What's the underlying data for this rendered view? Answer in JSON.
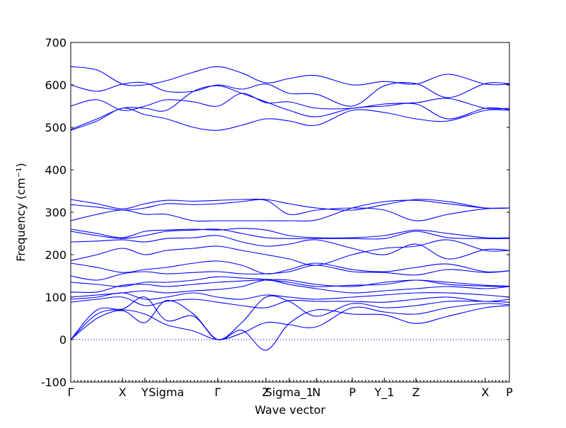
{
  "chart_data": {
    "type": "line",
    "title": "",
    "xlabel": "Wave vector",
    "ylabel": "Frequency (cm⁻¹)",
    "ylim": [
      -100,
      700
    ],
    "yticks": [
      -100,
      0,
      100,
      200,
      300,
      400,
      500,
      600,
      700
    ],
    "xlim": [
      0,
      1
    ],
    "grid": false,
    "zero_line": {
      "y": 0,
      "style": "dotted"
    },
    "line_color": "#0000ff",
    "high_symmetry_points": [
      {
        "label": "Γ",
        "x": 0.0
      },
      {
        "label": "X",
        "x": 0.118
      },
      {
        "label": "Y",
        "x": 0.169
      },
      {
        "label": "Sigma",
        "x": 0.218
      },
      {
        "label": "Γ",
        "x": 0.335
      },
      {
        "label": "Z",
        "x": 0.445
      },
      {
        "label": "Sigma_1",
        "x": 0.498
      },
      {
        "label": "N",
        "x": 0.56
      },
      {
        "label": "P",
        "x": 0.642
      },
      {
        "label": "Y_1",
        "x": 0.715
      },
      {
        "label": "Z",
        "x": 0.787
      },
      {
        "label": "X",
        "x": 0.945
      },
      {
        "label": "P",
        "x": 1.0
      }
    ],
    "series": [
      {
        "x": [
          0,
          0.06,
          0.118,
          0.169,
          0.218,
          0.28,
          0.335,
          0.39,
          0.445,
          0.498,
          0.56,
          0.642,
          0.715,
          0.787,
          0.86,
          0.945,
          1.0
        ],
        "y": [
          0,
          50,
          68,
          40,
          92,
          60,
          0,
          22,
          -25,
          38,
          70,
          60,
          58,
          38,
          55,
          75,
          80
        ]
      },
      {
        "x": [
          0,
          0.06,
          0.118,
          0.169,
          0.218,
          0.28,
          0.335,
          0.39,
          0.445,
          0.498,
          0.56,
          0.642,
          0.715,
          0.787,
          0.86,
          0.945,
          1.0
        ],
        "y": [
          0,
          60,
          70,
          60,
          35,
          20,
          0,
          15,
          40,
          35,
          30,
          75,
          65,
          60,
          75,
          85,
          82
        ]
      },
      {
        "x": [
          0,
          0.06,
          0.118,
          0.169,
          0.218,
          0.28,
          0.335,
          0.39,
          0.445,
          0.498,
          0.56,
          0.642,
          0.715,
          0.787,
          0.86,
          0.945,
          1.0
        ],
        "y": [
          0,
          70,
          72,
          100,
          45,
          55,
          0,
          40,
          100,
          90,
          55,
          85,
          75,
          80,
          90,
          90,
          88
        ]
      },
      {
        "x": [
          0,
          0.06,
          0.118,
          0.169,
          0.218,
          0.28,
          0.335,
          0.39,
          0.445,
          0.498,
          0.56,
          0.642,
          0.715,
          0.787,
          0.86,
          0.945,
          1.0
        ],
        "y": [
          88,
          95,
          100,
          80,
          90,
          95,
          88,
          80,
          75,
          92,
          90,
          90,
          88,
          95,
          100,
          90,
          95
        ]
      },
      {
        "x": [
          0,
          0.06,
          0.118,
          0.169,
          0.218,
          0.28,
          0.335,
          0.39,
          0.445,
          0.498,
          0.56,
          0.642,
          0.715,
          0.787,
          0.86,
          0.945,
          1.0
        ],
        "y": [
          95,
          100,
          110,
          95,
          100,
          110,
          100,
          95,
          105,
          100,
          95,
          100,
          105,
          110,
          110,
          105,
          100
        ]
      },
      {
        "x": [
          0,
          0.06,
          0.118,
          0.169,
          0.218,
          0.28,
          0.335,
          0.39,
          0.445,
          0.498,
          0.56,
          0.642,
          0.715,
          0.787,
          0.86,
          0.945,
          1.0
        ],
        "y": [
          100,
          105,
          110,
          115,
          110,
          115,
          118,
          125,
          140,
          130,
          120,
          110,
          115,
          120,
          125,
          120,
          125
        ]
      },
      {
        "x": [
          0,
          0.06,
          0.118,
          0.169,
          0.218,
          0.28,
          0.335,
          0.39,
          0.445,
          0.498,
          0.56,
          0.642,
          0.715,
          0.787,
          0.86,
          0.945,
          1.0
        ],
        "y": [
          112,
          112,
          128,
          130,
          125,
          130,
          135,
          138,
          140,
          135,
          125,
          128,
          130,
          140,
          130,
          126,
          125
        ]
      },
      {
        "x": [
          0,
          0.06,
          0.118,
          0.169,
          0.218,
          0.28,
          0.335,
          0.39,
          0.445,
          0.498,
          0.56,
          0.642,
          0.715,
          0.787,
          0.86,
          0.945,
          1.0
        ],
        "y": [
          135,
          130,
          125,
          135,
          135,
          140,
          148,
          145,
          142,
          140,
          130,
          125,
          135,
          140,
          135,
          128,
          126
        ]
      },
      {
        "x": [
          0,
          0.06,
          0.118,
          0.169,
          0.218,
          0.28,
          0.335,
          0.39,
          0.445,
          0.498,
          0.56,
          0.642,
          0.715,
          0.787,
          0.86,
          0.945,
          1.0
        ],
        "y": [
          150,
          140,
          155,
          160,
          155,
          158,
          160,
          155,
          155,
          160,
          175,
          160,
          158,
          152,
          165,
          158,
          162
        ]
      },
      {
        "x": [
          0,
          0.06,
          0.118,
          0.169,
          0.218,
          0.28,
          0.335,
          0.39,
          0.445,
          0.498,
          0.56,
          0.642,
          0.715,
          0.787,
          0.86,
          0.945,
          1.0
        ],
        "y": [
          180,
          170,
          158,
          165,
          170,
          180,
          185,
          175,
          155,
          165,
          180,
          165,
          160,
          170,
          178,
          160,
          162
        ]
      },
      {
        "x": [
          0,
          0.06,
          0.118,
          0.169,
          0.218,
          0.28,
          0.335,
          0.39,
          0.445,
          0.498,
          0.56,
          0.642,
          0.715,
          0.787,
          0.86,
          0.945,
          1.0
        ],
        "y": [
          186,
          200,
          215,
          200,
          210,
          215,
          220,
          210,
          200,
          190,
          175,
          200,
          215,
          220,
          235,
          210,
          210
        ]
      },
      {
        "x": [
          0,
          0.06,
          0.118,
          0.169,
          0.218,
          0.28,
          0.335,
          0.39,
          0.445,
          0.498,
          0.56,
          0.642,
          0.715,
          0.787,
          0.86,
          0.945,
          1.0
        ],
        "y": [
          230,
          232,
          235,
          230,
          238,
          240,
          245,
          230,
          220,
          225,
          235,
          215,
          200,
          225,
          190,
          212,
          210
        ]
      },
      {
        "x": [
          0,
          0.06,
          0.118,
          0.169,
          0.218,
          0.28,
          0.335,
          0.39,
          0.445,
          0.498,
          0.56,
          0.642,
          0.715,
          0.787,
          0.86,
          0.945,
          1.0
        ],
        "y": [
          255,
          245,
          238,
          245,
          255,
          258,
          260,
          250,
          240,
          238,
          238,
          238,
          238,
          255,
          240,
          238,
          238
        ]
      },
      {
        "x": [
          0,
          0.06,
          0.118,
          0.169,
          0.218,
          0.28,
          0.335,
          0.39,
          0.445,
          0.498,
          0.56,
          0.642,
          0.715,
          0.787,
          0.86,
          0.945,
          1.0
        ],
        "y": [
          260,
          250,
          240,
          255,
          258,
          260,
          258,
          262,
          258,
          245,
          240,
          240,
          245,
          258,
          250,
          240,
          240
        ]
      },
      {
        "x": [
          0,
          0.06,
          0.118,
          0.169,
          0.218,
          0.28,
          0.335,
          0.39,
          0.445,
          0.498,
          0.56,
          0.642,
          0.715,
          0.787,
          0.86,
          0.945,
          1.0
        ],
        "y": [
          280,
          295,
          305,
          295,
          295,
          280,
          280,
          280,
          280,
          280,
          282,
          310,
          325,
          328,
          320,
          310,
          310
        ]
      },
      {
        "x": [
          0,
          0.06,
          0.118,
          0.169,
          0.218,
          0.28,
          0.335,
          0.39,
          0.445,
          0.498,
          0.56,
          0.642,
          0.715,
          0.787,
          0.86,
          0.945,
          1.0
        ],
        "y": [
          318,
          312,
          305,
          310,
          320,
          318,
          320,
          325,
          328,
          295,
          305,
          310,
          305,
          280,
          295,
          308,
          310
        ]
      },
      {
        "x": [
          0,
          0.06,
          0.118,
          0.169,
          0.218,
          0.28,
          0.335,
          0.39,
          0.445,
          0.498,
          0.56,
          0.642,
          0.715,
          0.787,
          0.86,
          0.945,
          1.0
        ],
        "y": [
          330,
          320,
          308,
          320,
          328,
          326,
          328,
          330,
          330,
          320,
          310,
          305,
          318,
          330,
          325,
          310,
          310
        ]
      },
      {
        "x": [
          0,
          0.06,
          0.118,
          0.169,
          0.218,
          0.28,
          0.335,
          0.39,
          0.445,
          0.498,
          0.56,
          0.642,
          0.715,
          0.787,
          0.86,
          0.945,
          1.0
        ],
        "y": [
          493,
          515,
          545,
          530,
          520,
          500,
          493,
          505,
          520,
          515,
          505,
          540,
          535,
          520,
          515,
          540,
          540
        ]
      },
      {
        "x": [
          0,
          0.06,
          0.118,
          0.169,
          0.218,
          0.28,
          0.335,
          0.39,
          0.445,
          0.498,
          0.56,
          0.642,
          0.715,
          0.787,
          0.86,
          0.945,
          1.0
        ],
        "y": [
          495,
          520,
          545,
          545,
          540,
          585,
          598,
          580,
          560,
          540,
          525,
          545,
          550,
          555,
          520,
          545,
          542
        ]
      },
      {
        "x": [
          0,
          0.06,
          0.118,
          0.169,
          0.218,
          0.28,
          0.335,
          0.39,
          0.445,
          0.498,
          0.56,
          0.642,
          0.715,
          0.787,
          0.86,
          0.945,
          1.0
        ],
        "y": [
          550,
          565,
          540,
          550,
          565,
          560,
          550,
          580,
          558,
          560,
          545,
          545,
          555,
          558,
          568,
          545,
          545
        ]
      },
      {
        "x": [
          0,
          0.06,
          0.118,
          0.169,
          0.218,
          0.28,
          0.335,
          0.39,
          0.445,
          0.498,
          0.56,
          0.642,
          0.715,
          0.787,
          0.86,
          0.945,
          1.0
        ],
        "y": [
          600,
          585,
          602,
          605,
          585,
          585,
          600,
          590,
          602,
          580,
          578,
          550,
          598,
          603,
          570,
          603,
          603
        ]
      },
      {
        "x": [
          0,
          0.06,
          0.118,
          0.169,
          0.218,
          0.28,
          0.335,
          0.39,
          0.445,
          0.498,
          0.56,
          0.642,
          0.715,
          0.787,
          0.86,
          0.945,
          1.0
        ],
        "y": [
          643,
          635,
          602,
          600,
          610,
          630,
          643,
          628,
          605,
          615,
          622,
          600,
          608,
          602,
          625,
          602,
          602
        ]
      }
    ]
  }
}
